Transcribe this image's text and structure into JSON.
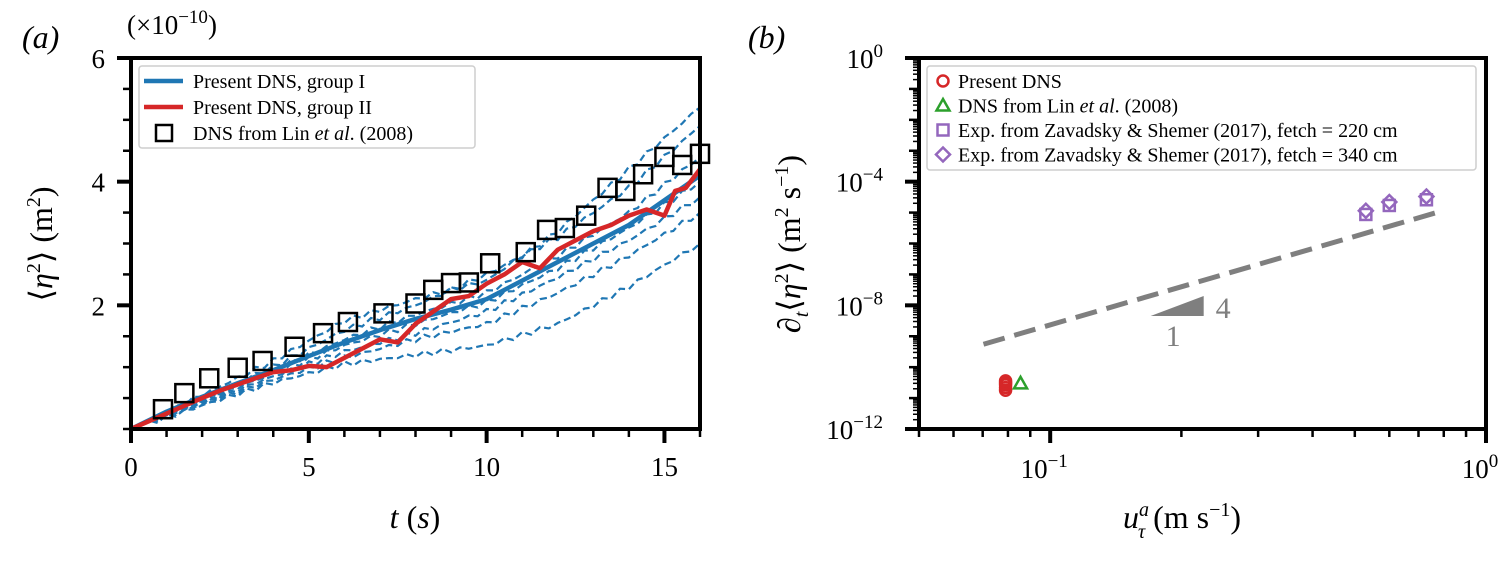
{
  "figure": {
    "panel_a_label": "(a)",
    "panel_b_label": "(b)"
  },
  "chart_data": [
    {
      "type": "line",
      "panel": "a",
      "title": "",
      "scale_note": "(×10−10)",
      "xlabel": "t (s)",
      "ylabel": "⟨η²⟩ (m²)",
      "xlim": [
        0,
        16
      ],
      "ylim": [
        0,
        6
      ],
      "xticks": [
        0,
        5,
        10,
        15
      ],
      "xtick_labels": [
        "0",
        "5",
        "10",
        "15"
      ],
      "yticks": [
        2,
        4,
        6
      ],
      "ytick_labels": [
        "2",
        "4",
        "6"
      ],
      "grid": false,
      "legend_position": "top-left",
      "legend": [
        {
          "label_parts": [
            "Present DNS, group I"
          ],
          "marker": "line",
          "color": "#1f77b4"
        },
        {
          "label_parts": [
            "Present DNS, group II"
          ],
          "marker": "line",
          "color": "#d62728"
        },
        {
          "label_parts": [
            "DNS from Lin ",
            "et al",
            ". (2008)"
          ],
          "marker": "square",
          "color": "#000000"
        }
      ],
      "series": [
        {
          "name": "Present DNS, group I (mean)",
          "style": "solid",
          "color": "#1f77b4",
          "x": [
            0,
            1,
            2,
            3,
            4,
            5,
            6,
            7,
            8,
            9,
            10,
            11,
            12,
            13,
            14,
            15,
            16
          ],
          "y": [
            0,
            0.28,
            0.52,
            0.74,
            0.95,
            1.18,
            1.4,
            1.6,
            1.78,
            1.93,
            2.1,
            2.4,
            2.7,
            3.0,
            3.3,
            3.7,
            4.1
          ]
        },
        {
          "name": "Present DNS, group II",
          "style": "solid",
          "color": "#d62728",
          "x": [
            0,
            1,
            2,
            2.5,
            3,
            3.5,
            4,
            4.5,
            5,
            5.5,
            6,
            6.5,
            7,
            7.5,
            8,
            8.5,
            9,
            9.5,
            10,
            10.5,
            11,
            11.5,
            12,
            12.5,
            13,
            13.5,
            14,
            14.5,
            15,
            15.3,
            15.6,
            16
          ],
          "y": [
            0,
            0.25,
            0.5,
            0.62,
            0.72,
            0.82,
            0.92,
            0.95,
            1.02,
            1.0,
            1.15,
            1.3,
            1.45,
            1.4,
            1.7,
            1.9,
            2.1,
            2.15,
            2.35,
            2.5,
            2.7,
            2.6,
            2.9,
            3.05,
            3.2,
            3.3,
            3.45,
            3.55,
            3.45,
            3.85,
            3.9,
            4.2
          ]
        },
        {
          "name": "Present DNS, group I (individual cases)",
          "style": "dashed",
          "color": "#1f77b4",
          "x": [
            0,
            2,
            4,
            6,
            8,
            10,
            12,
            14,
            16
          ],
          "runs": [
            [
              0,
              0.55,
              1.1,
              1.75,
              2.1,
              2.4,
              3.2,
              4.2,
              5.2
            ],
            [
              0,
              0.5,
              1.0,
              1.6,
              2.0,
              2.5,
              3.1,
              3.9,
              4.9
            ],
            [
              0,
              0.48,
              0.95,
              1.45,
              1.85,
              2.2,
              2.8,
              3.5,
              4.4
            ],
            [
              0,
              0.45,
              0.9,
              1.35,
              1.7,
              2.05,
              2.6,
              3.25,
              4.0
            ],
            [
              0,
              0.42,
              0.85,
              1.25,
              1.55,
              1.9,
              2.45,
              3.05,
              3.75
            ],
            [
              0,
              0.4,
              0.8,
              1.15,
              1.45,
              1.7,
              2.2,
              2.8,
              3.5
            ],
            [
              0,
              0.38,
              0.75,
              1.05,
              1.2,
              1.35,
              1.7,
              2.3,
              3.0
            ]
          ]
        },
        {
          "name": "DNS from Lin et al. (2008)",
          "style": "marker-square",
          "color": "#000000",
          "x": [
            0.9,
            1.5,
            2.2,
            3.0,
            3.7,
            4.6,
            5.4,
            6.1,
            7.1,
            8.0,
            8.5,
            9.0,
            9.5,
            10.1,
            11.1,
            11.7,
            12.2,
            12.8,
            13.4,
            13.9,
            14.4,
            15.0,
            15.5,
            16.0
          ],
          "y": [
            0.32,
            0.58,
            0.82,
            0.99,
            1.1,
            1.33,
            1.55,
            1.73,
            1.87,
            2.03,
            2.25,
            2.36,
            2.37,
            2.68,
            2.86,
            3.22,
            3.25,
            3.45,
            3.9,
            3.85,
            4.12,
            4.4,
            4.27,
            4.45
          ]
        }
      ]
    },
    {
      "type": "scatter",
      "panel": "b",
      "title": "",
      "xlabel": "u_τ^a (m s−1)",
      "ylabel": "∂t⟨η²⟩ (m² s−1)",
      "xscale": "log",
      "yscale": "log",
      "xlim": [
        0.05,
        1.0
      ],
      "ylim": [
        1e-12,
        1
      ],
      "xticks": [
        0.1,
        1.0
      ],
      "xtick_labels": [
        [
          "10",
          "−1"
        ],
        [
          "10",
          "0"
        ]
      ],
      "yticks": [
        1e-12,
        1e-08,
        0.0001,
        1
      ],
      "ytick_labels": [
        [
          "10",
          "−12"
        ],
        [
          "10",
          "−8"
        ],
        [
          "10",
          "−4"
        ],
        [
          "10",
          "0"
        ]
      ],
      "grid": false,
      "legend_position": "top-right",
      "legend": [
        {
          "label_parts": [
            "Present DNS"
          ],
          "marker": "circle",
          "color": "#d62728"
        },
        {
          "label_parts": [
            "DNS from Lin ",
            "et al",
            ". (2008)"
          ],
          "marker": "triangle",
          "color": "#2ca02c"
        },
        {
          "label_parts": [
            "Exp. from Zavadsky & Shemer (2017), fetch = 220 cm"
          ],
          "marker": "square",
          "color": "#9467bd"
        },
        {
          "label_parts": [
            "Exp. from Zavadsky & Shemer (2017), fetch = 340 cm"
          ],
          "marker": "diamond",
          "color": "#9467bd"
        }
      ],
      "series": [
        {
          "name": "Present DNS",
          "marker": "circle",
          "color": "#d62728",
          "x": [
            0.079,
            0.079,
            0.079,
            0.079,
            0.079
          ],
          "y": [
            1.8e-11,
            2.2e-11,
            2.7e-11,
            3.1e-11,
            3.6e-11
          ]
        },
        {
          "name": "DNS from Lin et al. (2008)",
          "marker": "triangle",
          "color": "#2ca02c",
          "x": [
            0.0855
          ],
          "y": [
            3e-11
          ]
        },
        {
          "name": "Exp. from Zavadsky & Shemer (2017), fetch = 220 cm",
          "marker": "square",
          "color": "#9467bd",
          "x": [
            0.53,
            0.6,
            0.73
          ],
          "y": [
            8.7e-06,
            1.7e-05,
            2.6e-05
          ]
        },
        {
          "name": "Exp. from Zavadsky & Shemer (2017), fetch = 340 cm",
          "marker": "diamond",
          "color": "#9467bd",
          "x": [
            0.53,
            0.6,
            0.73
          ],
          "y": [
            1.15e-05,
            2.2e-05,
            3.3e-05
          ]
        },
        {
          "name": "slope-4 reference",
          "style": "dashed",
          "color": "#7f7f7f",
          "x": [
            0.0703,
            0.77
          ],
          "y": [
            5.5e-10,
            1e-05
          ]
        }
      ],
      "annotations": [
        {
          "type": "slope-triangle",
          "run_label": "1",
          "rise_label": "4",
          "color": "#7f7f7f",
          "x": [
            0.17,
            0.225
          ],
          "y": [
            4.5e-09,
            2e-08
          ]
        }
      ]
    }
  ]
}
